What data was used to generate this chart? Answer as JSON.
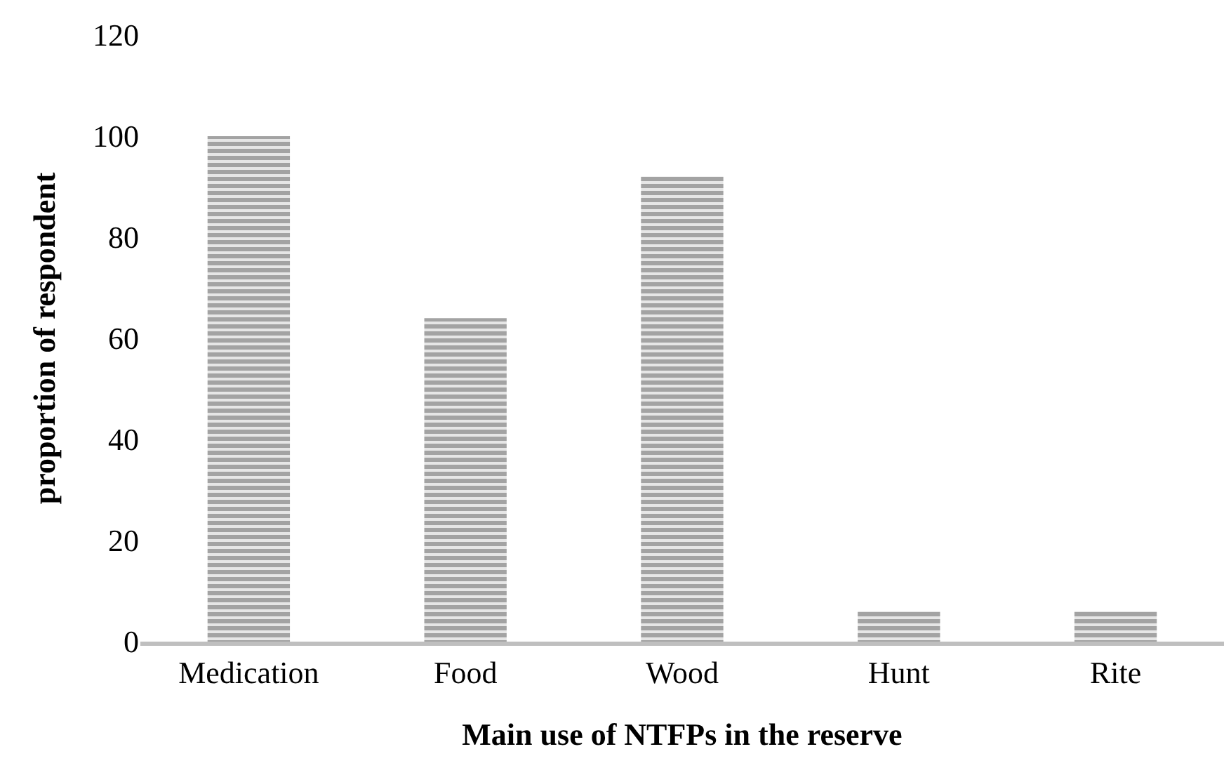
{
  "chart_data": {
    "type": "bar",
    "xlabel": "Main use of NTFPs in the reserve",
    "ylabel": "proportion of respondent",
    "categories": [
      "Medication",
      "Food",
      "Wood",
      "Hunt",
      "Rite"
    ],
    "values": [
      100,
      64,
      92,
      6,
      6
    ],
    "color": "#606060",
    "ylim": [
      0,
      120
    ],
    "yticks": [
      0,
      20,
      40,
      60,
      80,
      100,
      120
    ]
  }
}
